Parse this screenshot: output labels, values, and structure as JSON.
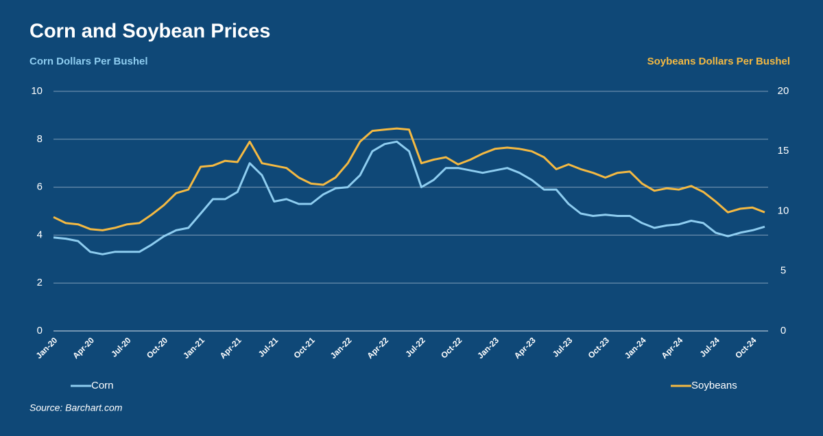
{
  "chart_data": {
    "type": "line",
    "title": "Corn and Soybean Prices",
    "y_label": "Corn Dollars Per Bushel",
    "y2_label": "Soybeans Dollars Per Bushel",
    "source": "Source: Barchart.com",
    "categories": [
      "Jan-20",
      null,
      null,
      "Apr-20",
      null,
      null,
      "Jul-20",
      null,
      null,
      "Oct-20",
      null,
      null,
      "Jan-21",
      null,
      null,
      "Apr-21",
      null,
      null,
      "Jul-21",
      null,
      null,
      "Oct-21",
      null,
      null,
      "Jan-22",
      null,
      null,
      "Apr-22",
      null,
      null,
      "Jul-22",
      null,
      null,
      "Oct-22",
      null,
      null,
      "Jan-23",
      null,
      null,
      "Apr-23",
      null,
      null,
      "Jul-23",
      null,
      null,
      "Oct-23",
      null,
      null,
      "Jan-24",
      null,
      null,
      "Apr-24",
      null,
      null,
      "Jul-24",
      null,
      null,
      "Oct-24",
      null
    ],
    "series": [
      {
        "name": "Corn",
        "color": "#8ecdf0",
        "axis": "y",
        "values": [
          3.9,
          3.85,
          3.75,
          3.3,
          3.2,
          3.3,
          3.3,
          3.3,
          3.6,
          3.95,
          4.2,
          4.3,
          4.9,
          5.5,
          5.5,
          5.8,
          7.0,
          6.5,
          5.4,
          5.5,
          5.3,
          5.3,
          5.7,
          5.95,
          6.0,
          6.5,
          7.5,
          7.8,
          7.9,
          7.5,
          6.0,
          6.3,
          6.8,
          6.8,
          6.7,
          6.6,
          6.7,
          6.8,
          6.6,
          6.3,
          5.9,
          5.9,
          5.3,
          4.9,
          4.8,
          4.85,
          4.8,
          4.8,
          4.5,
          4.3,
          4.4,
          4.45,
          4.6,
          4.5,
          4.1,
          3.95,
          4.1,
          4.2,
          4.35
        ]
      },
      {
        "name": "Soybeans",
        "color": "#f4b942",
        "axis": "y2",
        "values": [
          9.5,
          9.0,
          8.9,
          8.5,
          8.4,
          8.6,
          8.9,
          9.0,
          9.7,
          10.5,
          11.5,
          11.8,
          13.7,
          13.8,
          14.2,
          14.1,
          15.8,
          14.0,
          13.8,
          13.6,
          12.8,
          12.3,
          12.2,
          12.8,
          14.0,
          15.8,
          16.7,
          16.8,
          16.9,
          16.8,
          14.0,
          14.3,
          14.5,
          13.9,
          14.3,
          14.8,
          15.2,
          15.3,
          15.2,
          15.0,
          14.5,
          13.5,
          13.9,
          13.5,
          13.2,
          12.8,
          13.2,
          13.3,
          12.3,
          11.7,
          11.9,
          11.8,
          12.1,
          11.6,
          10.8,
          9.9,
          10.2,
          10.3,
          9.9
        ]
      }
    ],
    "ylim": [
      0,
      10
    ],
    "yticks": [
      0,
      2,
      4,
      6,
      8,
      10
    ],
    "y2lim": [
      0,
      20
    ],
    "y2ticks": [
      0,
      5,
      10,
      15,
      20
    ],
    "grid": true,
    "legend": "bottom"
  }
}
